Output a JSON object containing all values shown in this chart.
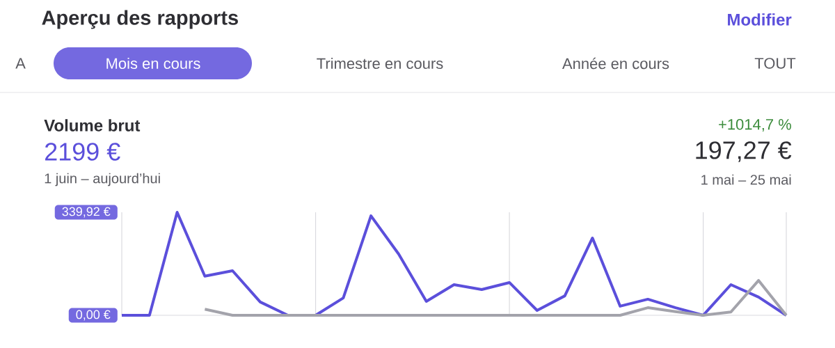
{
  "chart_data": {
    "type": "line",
    "title": "Aperçu des rapports",
    "annotations": [
      "Modifier",
      "A",
      "Mois en cours",
      "Trimestre en cours",
      "Année en cours",
      "TOUT",
      "Volume brut",
      "2199 €",
      "1 juin – aujourd’hui",
      "+1014,7 %",
      "197,27 €",
      "1 mai – 25 mai"
    ],
    "categories": [
      null,
      null,
      null,
      null,
      null,
      null,
      null,
      null,
      null,
      null,
      null,
      null,
      null,
      null,
      null,
      null,
      null,
      null,
      null,
      null,
      null,
      null,
      null,
      null,
      null
    ],
    "series": [
      {
        "color": "#5b4fdb",
        "values": [
          0,
          0,
          339.92,
          129,
          147,
          44,
          0,
          0,
          57,
          328,
          202,
          46,
          101,
          85,
          108,
          16,
          64,
          255,
          30,
          53,
          25,
          0,
          101,
          60,
          0
        ]
      },
      {
        "color": "#a3a3ab",
        "values": [
          null,
          null,
          null,
          20,
          0,
          0,
          0,
          0,
          0,
          0,
          0,
          0,
          0,
          0,
          0,
          0,
          0,
          0,
          0,
          25,
          12,
          0,
          11,
          115,
          0
        ]
      }
    ],
    "ylim": [
      0,
      339.92
    ],
    "yticks": [
      {
        "value": 0,
        "label": "0,00 €"
      },
      {
        "value": 339.92,
        "label": "339,92 €"
      }
    ],
    "grid": "x",
    "tick_labels": "y"
  }
}
